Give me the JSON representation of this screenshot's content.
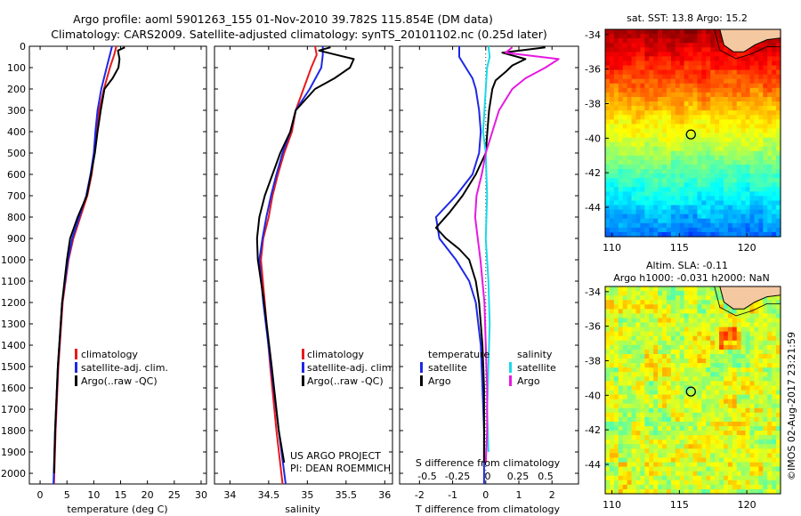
{
  "header": {
    "title_line1": "Argo profile: aoml 5901263_155 01-Nov-2010 39.782S 115.854E (DM data)",
    "title_line2": "Climatology: CARS2009. Satellite-adjusted climatology: synTS_20101102.nc (0.25d later)"
  },
  "side_text": "©IMOS 02-Aug-2017 23:21:59",
  "colors": {
    "climatology": "#e8191c",
    "satellite": "#1d28e6",
    "argo": "#000000",
    "sal_satellite": "#19d8e8",
    "sal_argo": "#e619e0",
    "land": "#f4c8a0"
  },
  "chart_data": [
    {
      "type": "line",
      "name": "temperature-panel",
      "xlabel": "temperature (deg C)",
      "ylabel": "",
      "xlim": [
        -2,
        31
      ],
      "ylim": [
        2050,
        0
      ],
      "x_ticks": [
        0,
        5,
        10,
        15,
        20,
        25,
        30
      ],
      "y_ticks": [
        0,
        100,
        200,
        300,
        400,
        500,
        600,
        700,
        800,
        900,
        1000,
        1100,
        1200,
        1300,
        1400,
        1500,
        1600,
        1700,
        1800,
        1900,
        2000
      ],
      "legend": [
        "climatology",
        "satellite-adj. clim.",
        "Argo(..raw -QC)"
      ],
      "series": [
        {
          "name": "climatology",
          "depth": [
            0,
            40,
            100,
            200,
            300,
            400,
            500,
            600,
            700,
            800,
            900,
            1000,
            1200,
            1500,
            1800,
            2050
          ],
          "values": [
            14.2,
            13.8,
            13.0,
            11.9,
            11.0,
            10.5,
            10.1,
            9.6,
            8.8,
            7.5,
            6.2,
            5.3,
            4.2,
            3.4,
            2.9,
            2.6
          ]
        },
        {
          "name": "satellite-adj. clim.",
          "depth": [
            0,
            40,
            100,
            200,
            300,
            400,
            500,
            600,
            700,
            800,
            900,
            1000,
            1200,
            1500,
            1800,
            2050
          ],
          "values": [
            13.4,
            13.0,
            12.4,
            11.4,
            10.7,
            10.3,
            10.0,
            9.4,
            8.6,
            7.3,
            6.0,
            5.2,
            4.1,
            3.3,
            2.8,
            2.5
          ]
        },
        {
          "name": "Argo(..raw -QC)",
          "depth": [
            5,
            20,
            60,
            100,
            150,
            200,
            300,
            400,
            500,
            600,
            700,
            800,
            900,
            1000,
            1200,
            1500,
            1800,
            2000
          ],
          "values": [
            15.8,
            14.5,
            14.8,
            14.6,
            13.5,
            12.0,
            11.3,
            10.7,
            10.2,
            9.5,
            8.7,
            7.0,
            5.6,
            5.0,
            4.1,
            3.3,
            2.8,
            2.6
          ]
        }
      ]
    },
    {
      "type": "line",
      "name": "salinity-panel",
      "xlabel": "salinity",
      "xlim": [
        33.8,
        36.1
      ],
      "ylim": [
        2050,
        0
      ],
      "x_ticks": [
        34,
        34.5,
        35,
        35.5,
        36
      ],
      "legend": [
        "climatology",
        "satellite-adj. clim.",
        "Argo(..raw -QC)"
      ],
      "annotations": [
        "US ARGO PROJECT",
        "PI: DEAN ROEMMICH"
      ],
      "series": [
        {
          "name": "climatology",
          "depth": [
            0,
            40,
            100,
            200,
            300,
            400,
            500,
            600,
            700,
            800,
            900,
            1000,
            1200,
            1500,
            1800,
            2050
          ],
          "values": [
            35.1,
            35.12,
            35.05,
            34.95,
            34.85,
            34.8,
            34.7,
            34.62,
            34.55,
            34.5,
            34.43,
            34.4,
            34.45,
            34.52,
            34.6,
            34.68
          ]
        },
        {
          "name": "satellite-adj. clim.",
          "depth": [
            0,
            40,
            100,
            200,
            300,
            400,
            500,
            600,
            700,
            800,
            900,
            1000,
            1200,
            1500,
            1800,
            2050
          ],
          "values": [
            35.2,
            35.2,
            35.18,
            35.03,
            34.85,
            34.78,
            34.68,
            34.6,
            34.53,
            34.47,
            34.42,
            34.38,
            34.43,
            34.53,
            34.63,
            34.72
          ]
        },
        {
          "name": "Argo(..raw -QC)",
          "depth": [
            5,
            20,
            60,
            100,
            150,
            200,
            300,
            400,
            500,
            600,
            700,
            800,
            900,
            1000,
            1200,
            1500,
            1800,
            1950
          ],
          "values": [
            35.3,
            35.15,
            35.6,
            35.55,
            35.35,
            35.1,
            34.85,
            34.78,
            34.65,
            34.55,
            34.45,
            34.38,
            34.35,
            34.36,
            34.44,
            34.54,
            34.63,
            34.7
          ]
        }
      ]
    },
    {
      "type": "line",
      "name": "difference-panel",
      "xlabel": "T difference from climatology",
      "top_xlabel": "S difference from climatology",
      "xlim": [
        -2.6,
        2.8
      ],
      "ylim": [
        2050,
        0
      ],
      "x_ticks": [
        -2,
        -1,
        0,
        1,
        2
      ],
      "top_ticks": [
        "-0.5",
        "-0.25",
        "0",
        "0.25",
        "0.5"
      ],
      "legend": {
        "temperature": [
          "satellite",
          "Argo"
        ],
        "salinity": [
          "satellite",
          "Argo"
        ]
      },
      "series": [
        {
          "name": "temperature satellite",
          "depth": [
            0,
            50,
            100,
            150,
            200,
            300,
            400,
            500,
            600,
            700,
            800,
            900,
            1000,
            1100,
            1200,
            1400,
            1600,
            1800,
            2050
          ],
          "values": [
            -0.8,
            -0.8,
            -0.6,
            -0.4,
            -0.3,
            -0.2,
            -0.15,
            -0.2,
            -0.4,
            -0.9,
            -1.5,
            -1.4,
            -0.9,
            -0.5,
            -0.3,
            -0.15,
            -0.1,
            -0.05,
            -0.05
          ]
        },
        {
          "name": "temperature Argo",
          "depth": [
            5,
            30,
            60,
            90,
            120,
            160,
            200,
            300,
            400,
            500,
            600,
            700,
            780,
            850,
            900,
            950,
            1000,
            1100,
            1200,
            1400,
            1600,
            1800,
            1950
          ],
          "values": [
            1.8,
            0.5,
            1.2,
            0.8,
            0.6,
            0.3,
            0.2,
            0.1,
            0.05,
            0.0,
            -0.3,
            -0.7,
            -1.1,
            -1.5,
            -1.2,
            -0.8,
            -0.5,
            -0.3,
            -0.2,
            -0.1,
            -0.05,
            -0.05,
            -0.05
          ]
        },
        {
          "name": "salinity satellite",
          "depth": [
            0,
            50,
            100,
            200,
            300,
            400,
            500,
            700,
            900,
            1100,
            1300,
            1500,
            1700,
            1900
          ],
          "values": [
            0.02,
            0.03,
            0.01,
            0.0,
            -0.01,
            -0.02,
            0.0,
            0.01,
            0.0,
            0.02,
            0.03,
            0.02,
            0.01,
            0.02
          ]
        },
        {
          "name": "salinity Argo",
          "depth": [
            5,
            30,
            60,
            100,
            150,
            200,
            300,
            400,
            500,
            600,
            700,
            800,
            900,
            1000,
            1200,
            1400,
            1600,
            1800,
            1950
          ],
          "values": [
            0.2,
            0.15,
            0.55,
            0.45,
            0.3,
            0.2,
            0.1,
            0.05,
            0.0,
            -0.03,
            -0.07,
            -0.08,
            -0.06,
            -0.04,
            -0.01,
            0.0,
            0.01,
            0.01,
            0.0
          ]
        }
      ]
    },
    {
      "type": "heatmap",
      "name": "sst-map",
      "title": "sat. SST: 13.8 Argo: 15.2",
      "x_ticks": [
        110,
        115,
        120
      ],
      "y_ticks": [
        -34,
        -36,
        -38,
        -40,
        -42,
        -44
      ],
      "xlim": [
        109.5,
        122.5
      ],
      "ylim": [
        -45.7,
        -33.7
      ],
      "float_position": [
        115.854,
        -39.782
      ]
    },
    {
      "type": "heatmap",
      "name": "sla-map",
      "title": "Altim. SLA: -0.11",
      "subtitle": "Argo h1000: -0.031 h2000: NaN",
      "x_ticks": [
        110,
        115,
        120
      ],
      "y_ticks": [
        -34,
        -36,
        -38,
        -40,
        -42,
        -44
      ],
      "xlim": [
        109.5,
        122.5
      ],
      "ylim": [
        -45.7,
        -33.7
      ],
      "float_position": [
        115.854,
        -39.782
      ]
    }
  ]
}
